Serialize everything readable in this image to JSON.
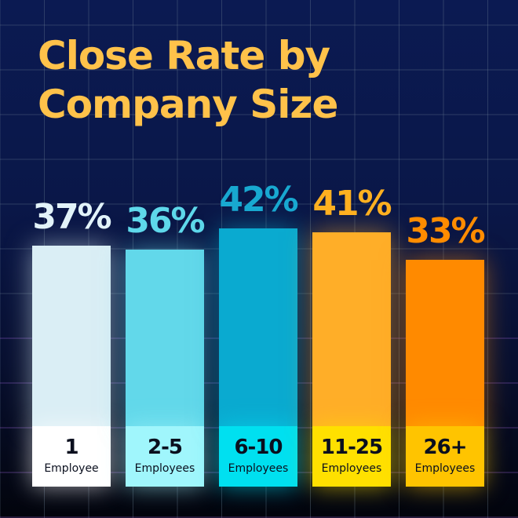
{
  "title_lines": [
    "Close Rate by",
    "Company Size"
  ],
  "colors": {
    "title": "#ffc24a",
    "background": "#0b1a52"
  },
  "chart_data": {
    "type": "bar",
    "title": "Close Rate by Company Size",
    "categories": [
      "1 Employee",
      "2-5 Employees",
      "6-10 Employees",
      "11-25 Employees",
      "26+ Employees"
    ],
    "category_numbers": [
      "1",
      "2-5",
      "6-10",
      "11-25",
      "26+"
    ],
    "category_units": [
      "Employee",
      "Employees",
      "Employees",
      "Employees",
      "Employees"
    ],
    "values": [
      37,
      36,
      42,
      41,
      33
    ],
    "value_labels": [
      "37%",
      "36%",
      "42%",
      "41%",
      "33%"
    ],
    "unit": "%",
    "bar_colors": [
      "#daeef5",
      "#62d8ea",
      "#0aaad0",
      "#ffae28",
      "#ff8a00"
    ],
    "label_colors": [
      "#e2f3f9",
      "#5ed8ea",
      "#18a8d0",
      "#ffb020",
      "#ff8c00"
    ],
    "box_colors": [
      "#ffffff",
      "#a0f6fc",
      "#00e0f0",
      "#ffe000",
      "#ffc400"
    ],
    "grid": true,
    "legend": "none"
  }
}
